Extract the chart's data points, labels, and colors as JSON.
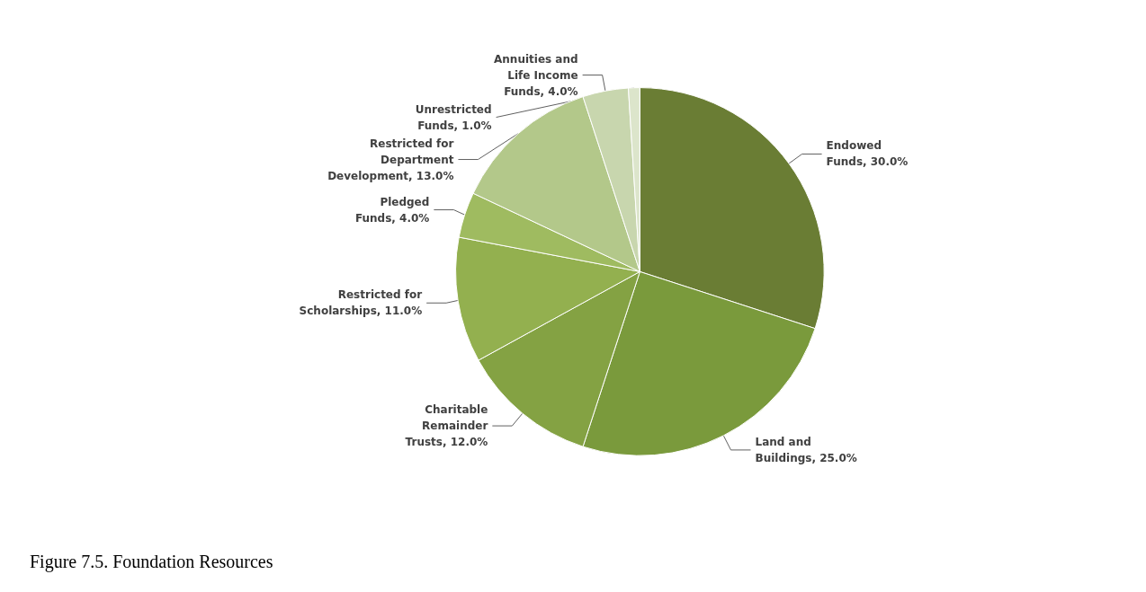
{
  "chart_data": {
    "type": "pie",
    "title": "Figure 7.5. Foundation Resources",
    "categories": [
      "Endowed Funds",
      "Land and Buildings",
      "Charitable Remainder Trusts",
      "Restricted for Scholarships",
      "Pledged Funds",
      "Restricted for Department Development",
      "Annuities and Life Income Funds",
      "Unrestricted Funds"
    ],
    "values": [
      30,
      25,
      12,
      11,
      4,
      13,
      4,
      1
    ],
    "value_labels": [
      "30.0%",
      "25.0%",
      "12.0%",
      "11.0%",
      "4.0%",
      "13.0%",
      "4.0%",
      "1.0%"
    ],
    "colors": [
      "#6a7d34",
      "#7a9a3c",
      "#84a243",
      "#93b04f",
      "#9fbb60",
      "#b3c88a",
      "#c8d6ae",
      "#dce5cb"
    ],
    "legend": false
  }
}
